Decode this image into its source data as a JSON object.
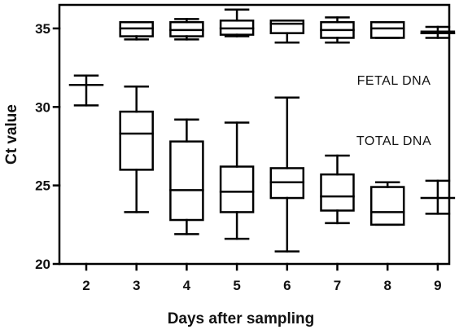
{
  "chart_data": {
    "type": "boxplot",
    "xlabel": "Days after sampling",
    "ylabel": "Ct value",
    "ylim": [
      20,
      36.5
    ],
    "yticks": [
      20,
      25,
      30,
      35
    ],
    "categories": [
      "2",
      "3",
      "4",
      "5",
      "6",
      "7",
      "8",
      "9"
    ],
    "grid": false,
    "legend": "none",
    "annotations": [
      "FETAL DNA",
      "TOTAL DNA"
    ],
    "line_color": "#000000",
    "series": [
      {
        "boxes": [
          null,
          {
            "category": "3",
            "min": 34.3,
            "q1": 34.5,
            "median": 35.0,
            "q3": 35.4,
            "max": 35.4
          },
          {
            "category": "4",
            "min": 34.3,
            "q1": 34.5,
            "median": 34.9,
            "q3": 35.4,
            "max": 35.6
          },
          {
            "category": "5",
            "min": 34.5,
            "q1": 34.6,
            "median": 35.0,
            "q3": 35.5,
            "max": 36.2
          },
          {
            "category": "6",
            "min": 34.1,
            "q1": 34.7,
            "median": 35.3,
            "q3": 35.5,
            "max": 35.5
          },
          {
            "category": "7",
            "min": 34.1,
            "q1": 34.4,
            "median": 34.9,
            "q3": 35.4,
            "max": 35.7
          },
          {
            "category": "8",
            "min": 34.4,
            "q1": 34.4,
            "median": 35.0,
            "q3": 35.4,
            "max": 35.4
          },
          {
            "category": "9",
            "min": 34.4,
            "q1": 34.7,
            "median": 34.7,
            "q3": 34.8,
            "max": 35.1
          }
        ]
      },
      {
        "boxes": [
          {
            "category": "2",
            "min": 30.1,
            "q1": 31.4,
            "median": 31.4,
            "q3": 31.4,
            "max": 32.0
          },
          {
            "category": "3",
            "min": 23.3,
            "q1": 26.0,
            "median": 28.3,
            "q3": 29.7,
            "max": 31.3
          },
          {
            "category": "4",
            "min": 21.9,
            "q1": 22.8,
            "median": 24.7,
            "q3": 27.8,
            "max": 29.2
          },
          {
            "category": "5",
            "min": 21.6,
            "q1": 23.3,
            "median": 24.6,
            "q3": 26.2,
            "max": 29.0
          },
          {
            "category": "6",
            "min": 20.8,
            "q1": 24.2,
            "median": 25.2,
            "q3": 26.1,
            "max": 30.6
          },
          {
            "category": "7",
            "min": 22.6,
            "q1": 23.4,
            "median": 24.3,
            "q3": 25.7,
            "max": 26.9
          },
          {
            "category": "8",
            "min": 22.5,
            "q1": 22.5,
            "median": 23.3,
            "q3": 24.9,
            "max": 25.2
          },
          {
            "category": "9",
            "min": 23.2,
            "q1": 24.2,
            "median": 24.2,
            "q3": 24.2,
            "max": 25.3
          }
        ]
      }
    ]
  }
}
